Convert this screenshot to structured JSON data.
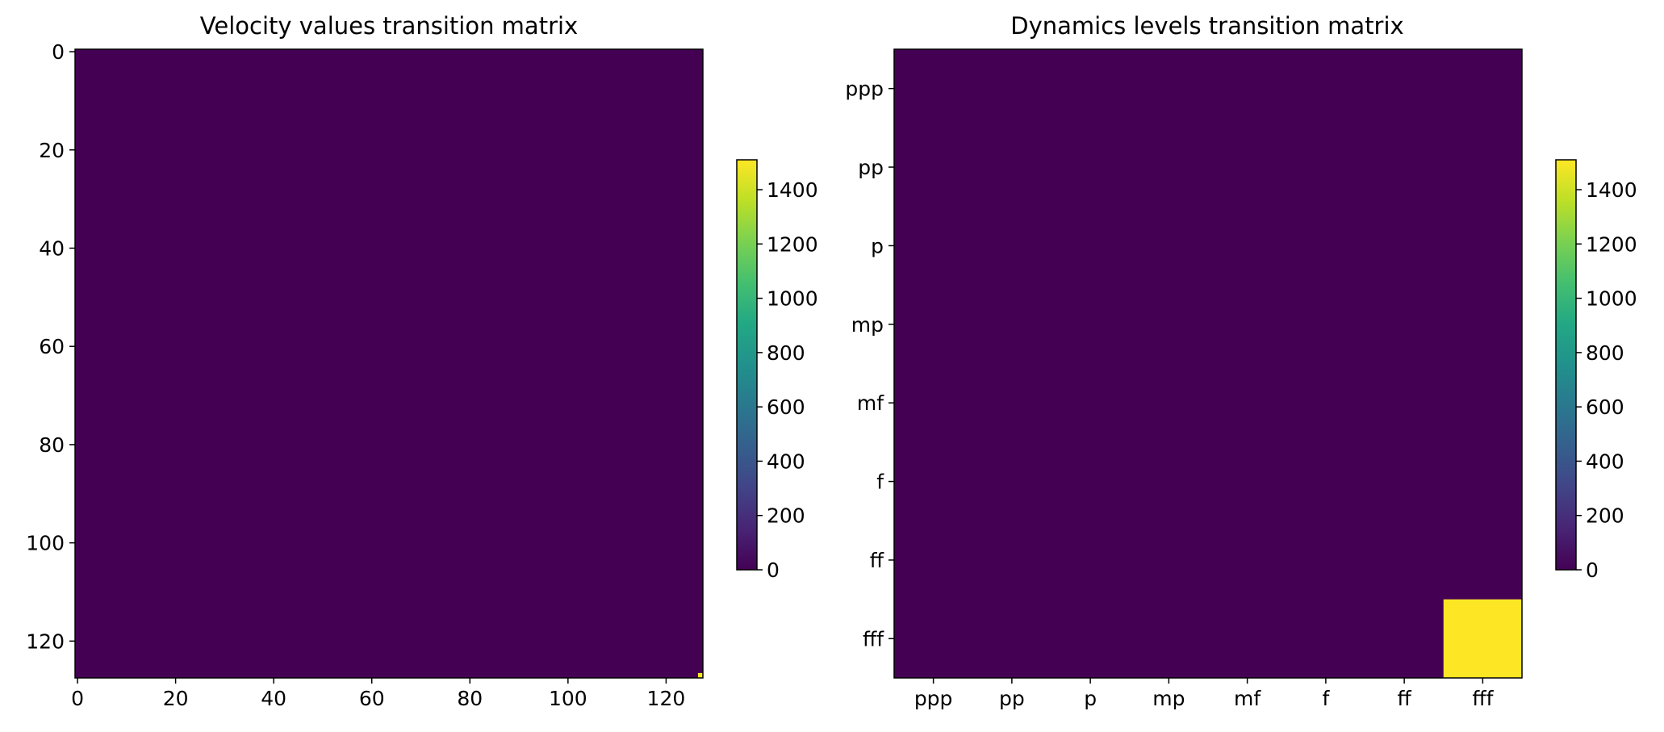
{
  "colormap": {
    "name": "viridis",
    "low_color": "#440154",
    "high_color": "#fde725"
  },
  "chart_data": [
    {
      "type": "heatmap",
      "title": "Velocity values transition matrix",
      "xlabel": "",
      "ylabel": "",
      "size": 128,
      "xlim": [
        -0.5,
        127.5
      ],
      "ylim": [
        127.5,
        -0.5
      ],
      "x_ticks": [
        0,
        20,
        40,
        60,
        80,
        100,
        120
      ],
      "y_ticks": [
        0,
        20,
        40,
        60,
        80,
        100,
        120
      ],
      "base_value": 0,
      "nonzero_cells": [
        {
          "row": 127,
          "col": 127,
          "value": 1510
        }
      ],
      "colorbar": {
        "range": [
          0,
          1510
        ],
        "ticks": [
          0,
          200,
          400,
          600,
          800,
          1000,
          1200,
          1400
        ]
      }
    },
    {
      "type": "heatmap",
      "title": "Dynamics levels transition matrix",
      "xlabel": "",
      "ylabel": "",
      "categories": [
        "ppp",
        "pp",
        "p",
        "mp",
        "mf",
        "f",
        "ff",
        "fff"
      ],
      "base_value": 0,
      "nonzero_cells": [
        {
          "row": 7,
          "col": 7,
          "value": 1510
        }
      ],
      "colorbar": {
        "range": [
          0,
          1510
        ],
        "ticks": [
          0,
          200,
          400,
          600,
          800,
          1000,
          1200,
          1400
        ]
      }
    }
  ]
}
